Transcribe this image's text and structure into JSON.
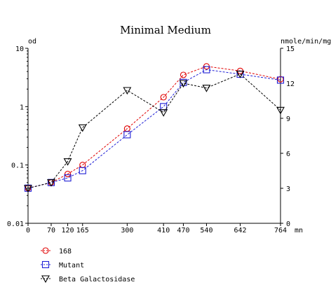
{
  "chart_data": {
    "type": "line",
    "title": "Minimal Medium",
    "xlabel": "mn",
    "ylabel_left": "od",
    "ylabel_right": "nmole/min/mg",
    "x_ticks": [
      0,
      70,
      120,
      165,
      300,
      410,
      470,
      540,
      642,
      764
    ],
    "xlim": [
      0,
      764
    ],
    "y_left": {
      "scale": "log",
      "lim": [
        0.01,
        10
      ],
      "ticks": [
        0.01,
        0.1,
        1,
        10
      ],
      "tick_labels": [
        "0.01",
        "0.1",
        "1",
        "10"
      ]
    },
    "y_right": {
      "scale": "linear",
      "lim": [
        0,
        15
      ],
      "ticks": [
        0,
        3,
        6,
        9,
        12,
        15
      ]
    },
    "grid": false,
    "legend_placement": "bottom-left",
    "series": [
      {
        "name": "168",
        "axis": "left",
        "marker": "circle",
        "color": "#e00000",
        "points": [
          [
            0,
            0.04
          ],
          [
            70,
            0.05
          ],
          [
            120,
            0.07
          ],
          [
            165,
            0.1
          ],
          [
            300,
            0.42
          ],
          [
            410,
            1.45
          ],
          [
            470,
            3.5
          ],
          [
            540,
            4.9
          ],
          [
            642,
            4.1
          ],
          [
            764,
            2.95
          ]
        ]
      },
      {
        "name": "Mutant",
        "axis": "left",
        "marker": "square",
        "color": "#1f1fd6",
        "points": [
          [
            0,
            0.04
          ],
          [
            70,
            0.05
          ],
          [
            120,
            0.06
          ],
          [
            165,
            0.08
          ],
          [
            300,
            0.33
          ],
          [
            410,
            1.0
          ],
          [
            470,
            2.6
          ],
          [
            540,
            4.3
          ],
          [
            642,
            3.6
          ],
          [
            764,
            2.85
          ]
        ]
      },
      {
        "name": "Beta Galactosidase",
        "axis": "right",
        "marker": "triangle-down",
        "color": "#000000",
        "points": [
          [
            0,
            3.0
          ],
          [
            70,
            3.5
          ],
          [
            120,
            5.3
          ],
          [
            165,
            8.2
          ],
          [
            300,
            11.4
          ],
          [
            410,
            9.5
          ],
          [
            470,
            12.0
          ],
          [
            540,
            11.6
          ],
          [
            642,
            12.8
          ],
          [
            764,
            9.7
          ]
        ]
      }
    ]
  }
}
